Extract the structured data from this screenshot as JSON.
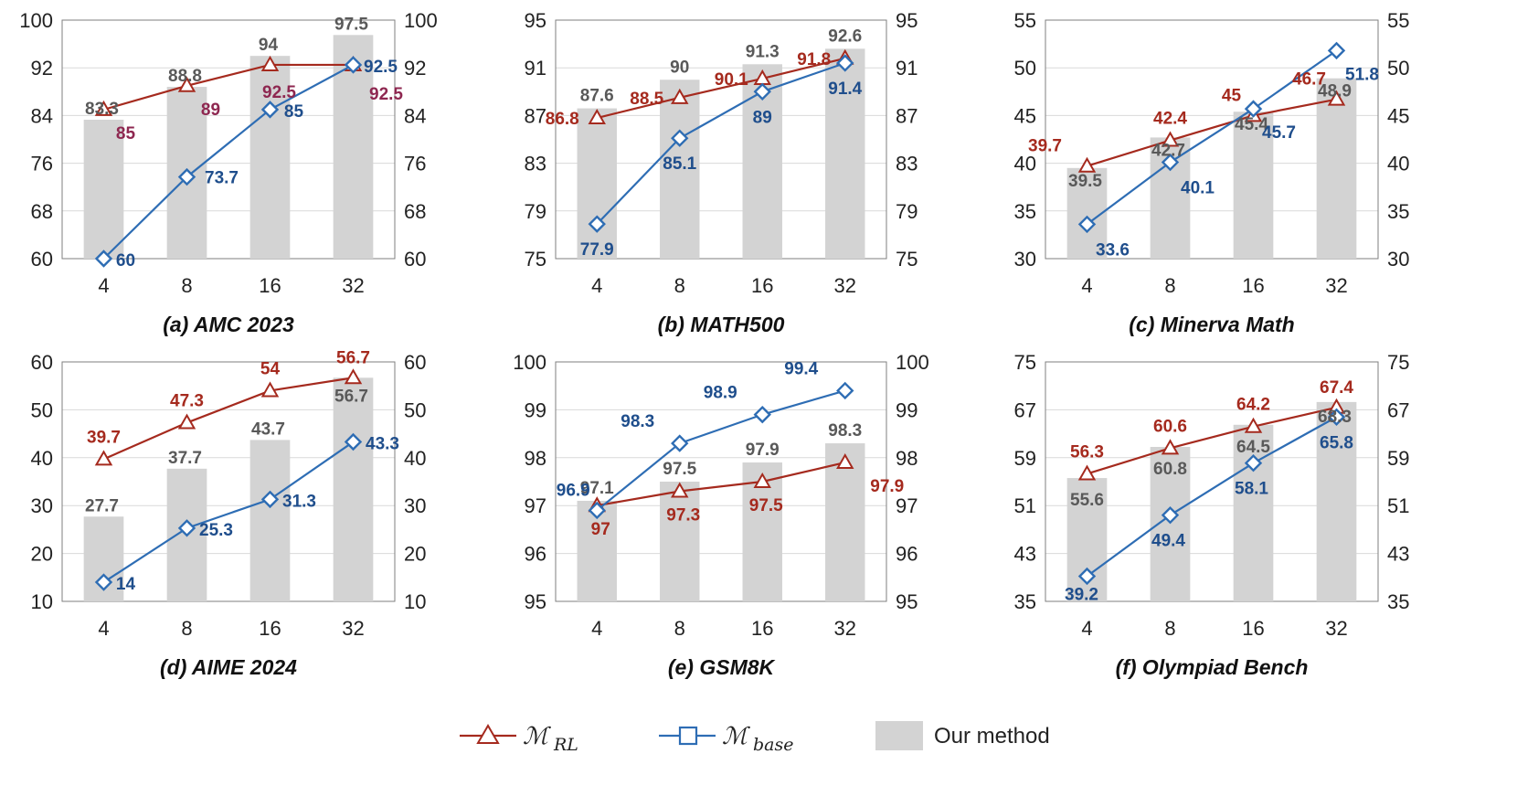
{
  "colors": {
    "rl": "#A52A1E",
    "base": "#2E6DB4",
    "bar": "#D3D3D3",
    "bar_label": "#595959",
    "rl_label": "#A52A1E",
    "base_label": "#1F4E8C",
    "rl_label_alt": "#8E2750"
  },
  "legend": {
    "rl_symbol": "ℳ",
    "rl_sub": "RL",
    "base_symbol": "ℳ",
    "base_sub": "base",
    "bar_label": "Our method"
  },
  "chart_data": [
    {
      "type": "bar+line",
      "caption": "(a) AMC 2023",
      "categories": [
        "4",
        "8",
        "16",
        "32"
      ],
      "ylim": [
        60,
        100
      ],
      "yticks": [
        60,
        68,
        76,
        84,
        92,
        100
      ],
      "bars": [
        83.3,
        88.8,
        94,
        97.5
      ],
      "rl": [
        85,
        89,
        92.5,
        92.5
      ],
      "base": [
        60,
        73.7,
        85,
        92.5
      ]
    },
    {
      "type": "bar+line",
      "caption": "(b) MATH500",
      "categories": [
        "4",
        "8",
        "16",
        "32"
      ],
      "ylim": [
        75,
        95
      ],
      "yticks": [
        75,
        79,
        83,
        87,
        91,
        95
      ],
      "bars": [
        87.6,
        90,
        91.3,
        92.6
      ],
      "rl": [
        86.8,
        88.5,
        90.1,
        91.8
      ],
      "base": [
        77.9,
        85.1,
        89,
        91.4
      ]
    },
    {
      "type": "bar+line",
      "caption": "(c) Minerva Math",
      "categories": [
        "4",
        "8",
        "16",
        "32"
      ],
      "ylim": [
        30,
        55
      ],
      "yticks": [
        30,
        35,
        40,
        45,
        50,
        55
      ],
      "bars": [
        39.5,
        42.7,
        45.4,
        48.9
      ],
      "rl": [
        39.7,
        42.4,
        45,
        46.7
      ],
      "base": [
        33.6,
        40.1,
        45.7,
        51.8
      ]
    },
    {
      "type": "bar+line",
      "caption": "(d) AIME 2024",
      "categories": [
        "4",
        "8",
        "16",
        "32"
      ],
      "ylim": [
        10,
        60
      ],
      "yticks": [
        10,
        20,
        30,
        40,
        50,
        60
      ],
      "bars": [
        27.7,
        37.7,
        43.7,
        56.7
      ],
      "rl": [
        39.7,
        47.3,
        54,
        56.7
      ],
      "base": [
        14,
        25.3,
        31.3,
        43.3
      ]
    },
    {
      "type": "bar+line",
      "caption": "(e) GSM8K",
      "categories": [
        "4",
        "8",
        "16",
        "32"
      ],
      "ylim": [
        95,
        100
      ],
      "yticks": [
        95,
        96,
        97,
        98,
        99,
        100
      ],
      "bars": [
        97.1,
        97.5,
        97.9,
        98.3
      ],
      "rl": [
        97,
        97.3,
        97.5,
        97.9
      ],
      "base": [
        96.9,
        98.3,
        98.9,
        99.4
      ]
    },
    {
      "type": "bar+line",
      "caption": "(f) Olympiad Bench",
      "categories": [
        "4",
        "8",
        "16",
        "32"
      ],
      "ylim": [
        35,
        75
      ],
      "yticks": [
        35,
        43,
        51,
        59,
        67,
        75
      ],
      "bars": [
        55.6,
        60.8,
        64.5,
        68.3
      ],
      "rl": [
        56.3,
        60.6,
        64.2,
        67.4
      ],
      "base": [
        39.2,
        49.4,
        58.1,
        65.8
      ]
    }
  ]
}
